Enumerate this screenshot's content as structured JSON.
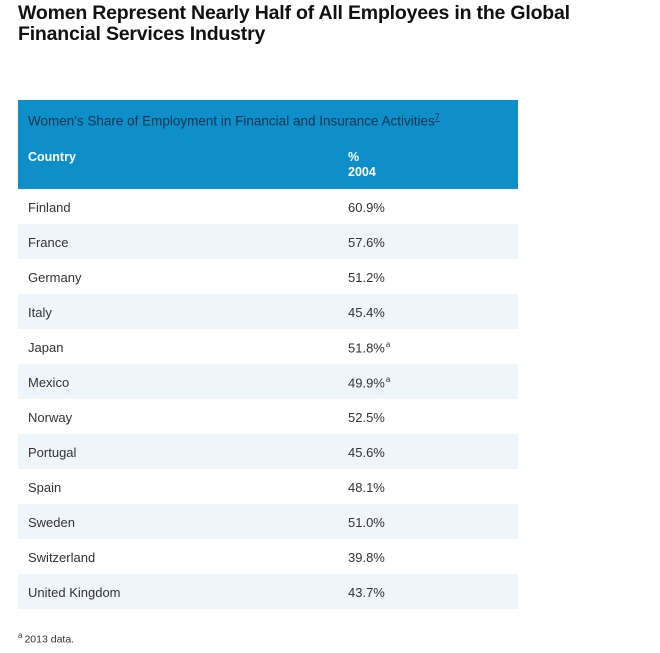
{
  "title": "Women Represent Nearly Half of All Employees in the Global Financial Services Industry",
  "table": {
    "caption": "Women's Share of Employment in Financial and Insurance Activities",
    "caption_ref": "7",
    "columns": {
      "country": "Country",
      "pct_line1": "%",
      "pct_line2": "2004"
    },
    "rows": [
      {
        "country": "Finland",
        "value": "60.9%",
        "note": ""
      },
      {
        "country": "France",
        "value": "57.6%",
        "note": ""
      },
      {
        "country": "Germany",
        "value": "51.2%",
        "note": ""
      },
      {
        "country": "Italy",
        "value": "45.4%",
        "note": ""
      },
      {
        "country": "Japan",
        "value": "51.8%",
        "note": "a"
      },
      {
        "country": "Mexico",
        "value": "49.9%",
        "note": "a"
      },
      {
        "country": "Norway",
        "value": "52.5%",
        "note": ""
      },
      {
        "country": "Portugal",
        "value": "45.6%",
        "note": ""
      },
      {
        "country": "Spain",
        "value": "48.1%",
        "note": ""
      },
      {
        "country": "Sweden",
        "value": "51.0%",
        "note": ""
      },
      {
        "country": "Switzerland",
        "value": "39.8%",
        "note": ""
      },
      {
        "country": "United Kingdom",
        "value": "43.7%",
        "note": ""
      }
    ]
  },
  "footnote": {
    "marker": "a",
    "text": "2013 data."
  },
  "colors": {
    "header_bg": "#0f8fc9",
    "stripe_bg": "#eef5fb"
  }
}
